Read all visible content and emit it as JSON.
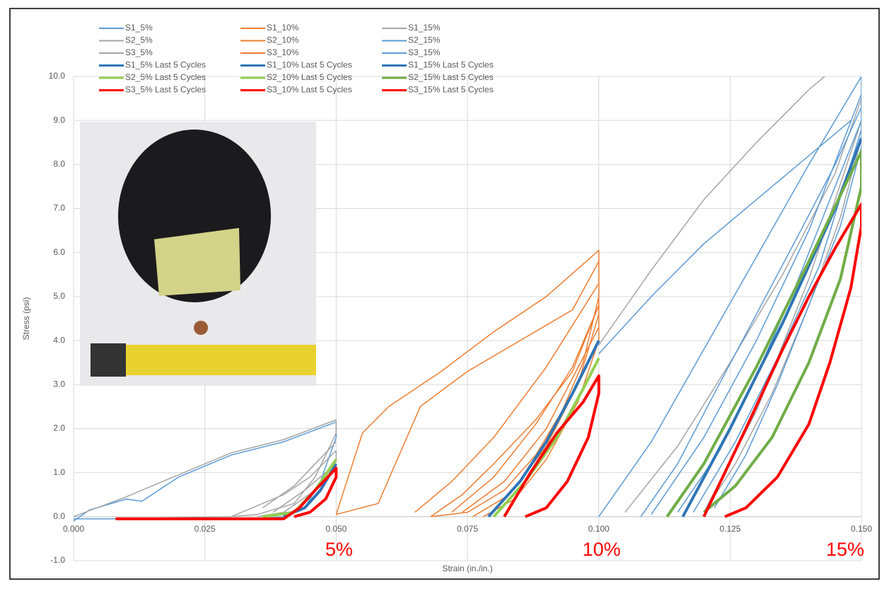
{
  "chart_data": {
    "type": "line",
    "x_label": "Strain (in./in.)",
    "y_label": "Stress (psi)",
    "xlim": [
      0,
      0.15
    ],
    "ylim": [
      -1,
      10
    ],
    "xticks": [
      {
        "value": 0,
        "label": "0.000"
      },
      {
        "value": 0.025,
        "label": "0.025"
      },
      {
        "value": 0.05,
        "label": "0.050"
      },
      {
        "value": 0.075,
        "label": "0.075"
      },
      {
        "value": 0.1,
        "label": "0.100"
      },
      {
        "value": 0.125,
        "label": "0.125"
      },
      {
        "value": 0.15,
        "label": "0.150"
      }
    ],
    "yticks": [
      {
        "value": -1,
        "label": "-1.0"
      },
      {
        "value": 0,
        "label": "0.0"
      },
      {
        "value": 1,
        "label": "1.0"
      },
      {
        "value": 2,
        "label": "2.0"
      },
      {
        "value": 3,
        "label": "3.0"
      },
      {
        "value": 4,
        "label": "4.0"
      },
      {
        "value": 5,
        "label": "5.0"
      },
      {
        "value": 6,
        "label": "6.0"
      },
      {
        "value": 7,
        "label": "7.0"
      },
      {
        "value": 8,
        "label": "8.0"
      },
      {
        "value": 9,
        "label": "9.0"
      },
      {
        "value": 10,
        "label": "10.0"
      }
    ],
    "grid": true,
    "legend": "top-left",
    "annotations": [
      {
        "text": "5%",
        "x": 0.05,
        "color": "#ff0000"
      },
      {
        "text": "10%",
        "x": 0.1,
        "color": "#ff0000"
      },
      {
        "text": "15%",
        "x": 0.15,
        "color": "#ff0000"
      }
    ],
    "series": [
      {
        "name": "S1_5%",
        "color": "#5b9bd5",
        "width": 1.5,
        "x": [
          0,
          0.003,
          0.01,
          0.013,
          0.02,
          0.03,
          0.04,
          0.05,
          0.05,
          0.047,
          0.044,
          0.04,
          0.035,
          0
        ],
        "values": [
          -0.1,
          0.15,
          0.4,
          0.35,
          0.9,
          1.4,
          1.7,
          2.15,
          1.8,
          0.8,
          0.2,
          0,
          -0.05,
          -0.05
        ]
      },
      {
        "name": "S1_10%",
        "color": "#ed7d31",
        "width": 1.5,
        "x": [
          0.05,
          0.055,
          0.06,
          0.07,
          0.08,
          0.09,
          0.1,
          0.1,
          0.097,
          0.093,
          0.088,
          0.082,
          0.075,
          0.068,
          null,
          0.065,
          0.072,
          0.08,
          0.09,
          0.1
        ],
        "values": [
          0.05,
          1.9,
          2.5,
          3.3,
          4.2,
          5.0,
          6.05,
          5.0,
          3.5,
          2.4,
          1.4,
          0.6,
          0.1,
          0,
          null,
          0.1,
          0.8,
          1.8,
          3.4,
          5.3
        ]
      },
      {
        "name": "S1_15%",
        "color": "#a5a5a5",
        "width": 1.5,
        "x": [
          0.1,
          0.11,
          0.12,
          0.13,
          0.14,
          0.143,
          null,
          0.105,
          0.115,
          0.125,
          0.135,
          0.145,
          0.15,
          0.15,
          0.146,
          0.14,
          0.133,
          0.126,
          0.12,
          null,
          0.12,
          0.13,
          0.14,
          0.15
        ],
        "values": [
          3.9,
          5.6,
          7.2,
          8.5,
          9.7,
          10,
          null,
          0.1,
          1.6,
          3.5,
          5.5,
          7.8,
          9.5,
          8.6,
          6.8,
          4.8,
          2.8,
          1.2,
          0.1,
          null,
          0.1,
          2.4,
          5.4,
          9.0
        ]
      },
      {
        "name": "S2_5%",
        "color": "#a5a5a5",
        "width": 1.5,
        "x": [
          0,
          0.01,
          0.02,
          0.03,
          0.04,
          0.05,
          0.05,
          0.046,
          0.042,
          0.035,
          0.03,
          null,
          0.036,
          0.042,
          0.046,
          0.05
        ],
        "values": [
          0,
          0.45,
          0.95,
          1.45,
          1.75,
          2.2,
          1.9,
          0.9,
          0.3,
          0.05,
          0,
          null,
          0.2,
          0.7,
          1.2,
          1.7
        ]
      },
      {
        "name": "S2_10%",
        "color": "#ed7d31",
        "width": 1.5,
        "x": [
          0.05,
          0.058,
          0.066,
          0.075,
          0.085,
          0.095,
          0.1,
          0.1,
          0.096,
          0.09,
          0.083,
          0.076,
          null,
          0.072,
          0.08,
          0.088,
          0.095,
          0.1
        ],
        "values": [
          0.05,
          0.3,
          2.5,
          3.3,
          4.0,
          4.7,
          5.8,
          4.6,
          3.0,
          1.6,
          0.5,
          0,
          null,
          0.1,
          0.9,
          2.1,
          3.4,
          4.8
        ]
      },
      {
        "name": "S2_15%",
        "color": "#5b9bd5",
        "width": 1.5,
        "x": [
          0.1,
          0.11,
          0.12,
          0.13,
          0.14,
          0.148,
          null,
          0.1,
          0.11,
          0.12,
          0.13,
          0.14,
          0.15,
          0.15,
          0.144,
          0.137,
          0.13,
          0.123,
          0.115,
          null,
          0.11,
          0.12,
          0.13,
          0.14,
          0.15
        ],
        "values": [
          3.7,
          5.0,
          6.2,
          7.2,
          8.2,
          9.0,
          null,
          0,
          1.7,
          3.8,
          5.9,
          8.0,
          10,
          9.0,
          7.2,
          5.1,
          3.2,
          1.5,
          0.1,
          null,
          0.05,
          1.8,
          4.0,
          6.5,
          9.6
        ]
      },
      {
        "name": "S3_5%",
        "color": "#a5a5a5",
        "width": 1.5,
        "x": [
          0.008,
          0.03,
          0.034,
          0.04,
          0.045,
          0.05,
          0.05,
          0.046,
          0.04,
          0.035,
          null,
          0.038,
          0.044,
          0.05
        ],
        "values": [
          -0.05,
          0,
          0.2,
          0.5,
          0.9,
          1.5,
          1.3,
          0.6,
          0.1,
          0,
          null,
          0.1,
          0.6,
          1.2
        ]
      },
      {
        "name": "S3_10%",
        "color": "#ed7d31",
        "width": 1.5,
        "x": [
          0.068,
          0.074,
          0.08,
          0.088,
          0.095,
          0.1,
          0.1,
          0.096,
          0.09,
          0.084,
          0.078,
          null,
          0.074,
          0.082,
          0.09,
          0.1
        ],
        "values": [
          0,
          0.5,
          1.2,
          2.2,
          3.3,
          4.8,
          4.0,
          2.6,
          1.3,
          0.4,
          0,
          null,
          0.1,
          0.8,
          2.0,
          4.3
        ]
      },
      {
        "name": "S3_15%",
        "color": "#5b9bd5",
        "width": 1.5,
        "x": [
          0.108,
          0.115,
          0.122,
          0.13,
          0.138,
          0.145,
          0.15,
          0.15,
          0.146,
          0.14,
          0.134,
          0.128,
          0.122,
          null,
          0.118,
          0.126,
          0.134,
          0.142,
          0.15
        ],
        "values": [
          0,
          1.2,
          2.8,
          4.6,
          6.4,
          8.0,
          9.3,
          8.4,
          6.6,
          4.8,
          3.0,
          1.4,
          0.2,
          null,
          0.1,
          1.7,
          3.6,
          5.7,
          8.8
        ]
      },
      {
        "name": "S1_5% Last 5 Cycles",
        "color": "#2e75b6",
        "width": 4,
        "x": [
          0.04,
          0.044,
          0.047,
          0.05
        ],
        "values": [
          0,
          0.2,
          0.6,
          1.2
        ]
      },
      {
        "name": "S1_10% Last 5 Cycles",
        "color": "#2e75b6",
        "width": 4,
        "x": [
          0.079,
          0.085,
          0.09,
          0.095,
          0.1
        ],
        "values": [
          0,
          0.8,
          1.7,
          2.8,
          4.0
        ]
      },
      {
        "name": "S1_15% Last 5 Cycles",
        "color": "#2e75b6",
        "width": 4,
        "x": [
          0.116,
          0.125,
          0.135,
          0.145,
          0.15
        ],
        "values": [
          0,
          2.0,
          4.4,
          7.0,
          8.6
        ]
      },
      {
        "name": "S2_5% Last 5 Cycles",
        "color": "#92d050",
        "width": 4,
        "x": [
          0.036,
          0.042,
          0.046,
          0.05
        ],
        "values": [
          0,
          0.1,
          0.6,
          1.3
        ]
      },
      {
        "name": "S2_10% Last 5 Cycles",
        "color": "#92d050",
        "width": 4,
        "x": [
          0.08,
          0.086,
          0.092,
          0.097,
          0.1
        ],
        "values": [
          0,
          0.8,
          1.8,
          2.9,
          3.6
        ]
      },
      {
        "name": "S2_15% Last 5 Cycles",
        "color": "#70ad47",
        "width": 4,
        "x": [
          0.113,
          0.12,
          0.13,
          0.14,
          0.15,
          0.15,
          0.146,
          0.14,
          0.133,
          0.126,
          0.12
        ],
        "values": [
          0,
          1.2,
          3.4,
          5.8,
          8.3,
          7.5,
          5.4,
          3.5,
          1.8,
          0.7,
          0.1
        ]
      },
      {
        "name": "S3_5% Last 5 Cycles",
        "color": "#ff0000",
        "width": 4,
        "x": [
          0.008,
          0.04,
          0.043,
          0.046,
          0.05,
          0.05,
          0.048,
          0.045,
          0.042
        ],
        "values": [
          -0.05,
          -0.05,
          0.2,
          0.6,
          1.1,
          0.9,
          0.4,
          0.1,
          0
        ]
      },
      {
        "name": "S3_10% Last 5 Cycles",
        "color": "#ff0000",
        "width": 4,
        "x": [
          0.082,
          0.087,
          0.092,
          0.097,
          0.1,
          0.1,
          0.098,
          0.094,
          0.09,
          0.086
        ],
        "values": [
          0,
          1.0,
          1.9,
          2.6,
          3.2,
          2.8,
          1.8,
          0.8,
          0.2,
          0
        ]
      },
      {
        "name": "S3_15% Last 5 Cycles",
        "color": "#ff0000",
        "width": 4,
        "x": [
          0.12,
          0.128,
          0.135,
          0.14,
          0.145,
          0.15,
          0.15,
          0.148,
          0.144,
          0.14,
          0.134,
          0.128,
          0.124
        ],
        "values": [
          0,
          2.0,
          3.8,
          5.0,
          6.1,
          7.1,
          6.6,
          5.2,
          3.5,
          2.1,
          0.9,
          0.2,
          0
        ]
      }
    ]
  }
}
